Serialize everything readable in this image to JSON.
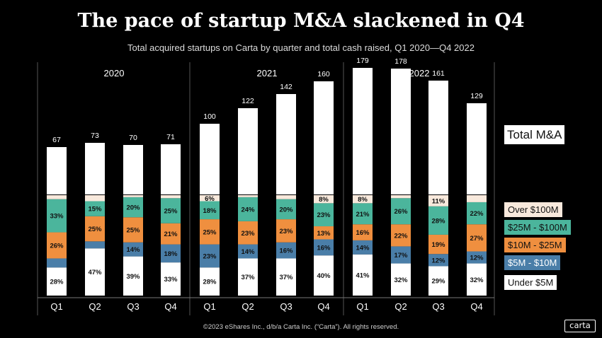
{
  "title": "The pace of startup M&A slackened in Q4",
  "subtitle": "Total acquired startups on Carta by quarter and total cash raised, Q1 2020—Q4 2022",
  "footer": "©2023 eShares Inc., d/b/a Carta Inc. (“Carta”). All rights reserved.",
  "brand": "carta",
  "legend": {
    "total_label": "Total M&A",
    "items": [
      {
        "label": "Over $100M",
        "color": "#f8e9dc"
      },
      {
        "label": "$25M - $100M",
        "color": "#4bb59c"
      },
      {
        "label": "$10M - $25M",
        "color": "#ef8f3f"
      },
      {
        "label": "$5M - $10M",
        "color": "#4a7ea8"
      },
      {
        "label": "Under $5M",
        "color": "#ffffff"
      }
    ]
  },
  "chart_data": {
    "type": "bar",
    "years": [
      "2020",
      "2021",
      "2022"
    ],
    "categories": [
      "Q1",
      "Q2",
      "Q3",
      "Q4",
      "Q1",
      "Q2",
      "Q3",
      "Q4",
      "Q1",
      "Q2",
      "Q3",
      "Q4"
    ],
    "totals": [
      67,
      73,
      70,
      71,
      100,
      122,
      142,
      160,
      179,
      178,
      161,
      129
    ],
    "series": [
      {
        "name": "Under $5M",
        "color": "#ffffff",
        "values": [
          28,
          47,
          39,
          33,
          28,
          37,
          37,
          40,
          41,
          32,
          29,
          32
        ],
        "labels": [
          "28%",
          "47%",
          "39%",
          "33%",
          "28%",
          "37%",
          "37%",
          "40%",
          "41%",
          "32%",
          "29%",
          "32%"
        ]
      },
      {
        "name": "$5M - $10M",
        "color": "#4a7ea8",
        "values": [
          9,
          7,
          14,
          18,
          23,
          14,
          16,
          16,
          14,
          17,
          12,
          12
        ],
        "labels": [
          "",
          "",
          "14%",
          "18%",
          "23%",
          "14%",
          "16%",
          "16%",
          "14%",
          "17%",
          "12%",
          "12%"
        ]
      },
      {
        "name": "$10M - $25M",
        "color": "#ef8f3f",
        "values": [
          26,
          25,
          25,
          21,
          25,
          23,
          23,
          13,
          16,
          22,
          19,
          27
        ],
        "labels": [
          "26%",
          "25%",
          "25%",
          "21%",
          "25%",
          "23%",
          "23%",
          "13%",
          "16%",
          "22%",
          "19%",
          "27%"
        ]
      },
      {
        "name": "$25M - $100M",
        "color": "#4bb59c",
        "values": [
          33,
          15,
          20,
          25,
          18,
          24,
          20,
          23,
          21,
          26,
          28,
          22
        ],
        "labels": [
          "33%",
          "15%",
          "20%",
          "25%",
          "18%",
          "24%",
          "20%",
          "23%",
          "21%",
          "26%",
          "28%",
          "22%"
        ]
      },
      {
        "name": "Over $100M",
        "color": "#f8e9dc",
        "values": [
          4,
          6,
          2,
          3,
          6,
          2,
          4,
          8,
          8,
          3,
          11,
          7
        ],
        "labels": [
          "",
          "",
          "",
          "",
          "6%",
          "",
          "",
          "8%",
          "8%",
          "",
          "11%",
          ""
        ]
      }
    ],
    "ylim_total": [
      0,
      185
    ],
    "grid": false
  }
}
